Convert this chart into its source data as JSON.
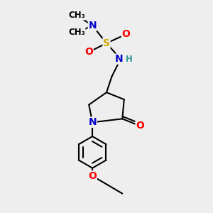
{
  "bg_color": "#eeeeee",
  "atom_colors": {
    "C": "#000000",
    "N": "#0000cc",
    "O": "#ff0000",
    "S": "#ccaa00",
    "H": "#339999"
  },
  "bond_color": "#000000",
  "bond_width": 1.5,
  "font_size_atom": 10,
  "font_size_small": 8.5,
  "figsize": [
    3.0,
    3.0
  ],
  "dpi": 100,
  "xlim": [
    0,
    10
  ],
  "ylim": [
    0,
    12
  ]
}
